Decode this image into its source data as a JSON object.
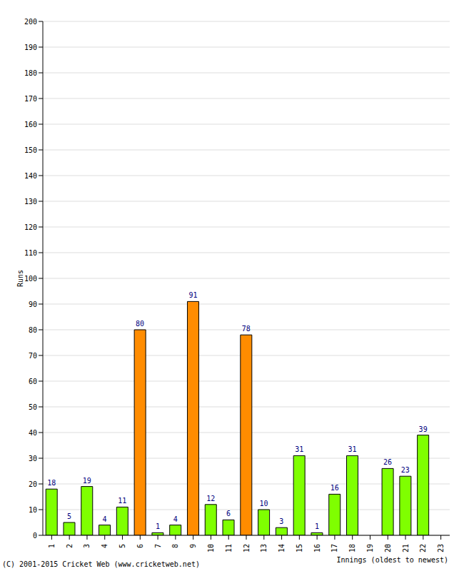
{
  "chart_data": {
    "type": "bar",
    "categories": [
      "1",
      "2",
      "3",
      "4",
      "5",
      "6",
      "7",
      "8",
      "9",
      "10",
      "11",
      "12",
      "13",
      "14",
      "15",
      "16",
      "17",
      "18",
      "19",
      "20",
      "21",
      "22",
      "23"
    ],
    "values": [
      18,
      5,
      19,
      4,
      11,
      80,
      1,
      4,
      91,
      12,
      6,
      78,
      10,
      3,
      31,
      1,
      16,
      31,
      0,
      26,
      23,
      39,
      0
    ],
    "colors": [
      "#7fff00",
      "#7fff00",
      "#7fff00",
      "#7fff00",
      "#7fff00",
      "#ff8c00",
      "#7fff00",
      "#7fff00",
      "#ff8c00",
      "#7fff00",
      "#7fff00",
      "#ff8c00",
      "#7fff00",
      "#7fff00",
      "#7fff00",
      "#7fff00",
      "#7fff00",
      "#7fff00",
      "#7fff00",
      "#7fff00",
      "#7fff00",
      "#7fff00",
      "#7fff00"
    ],
    "ylim": [
      0,
      200
    ],
    "yticks": [
      0,
      10,
      20,
      30,
      40,
      50,
      60,
      70,
      80,
      90,
      100,
      110,
      120,
      130,
      140,
      150,
      160,
      170,
      180,
      190,
      200
    ],
    "grid": true,
    "data_labels": true,
    "y_label": "Runs",
    "x_label": "Innings (oldest to newest)",
    "annotation": "(C) 2001-2015 Cricket Web (www.cricketweb.net)"
  }
}
